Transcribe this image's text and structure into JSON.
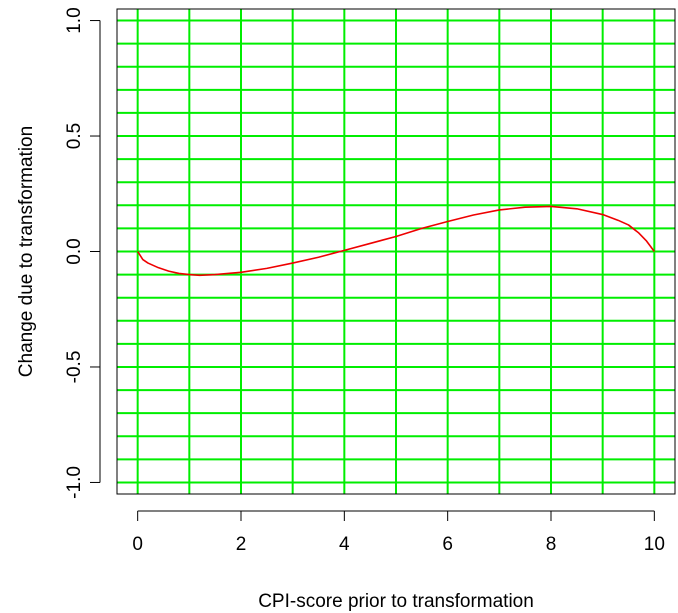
{
  "chart_data": {
    "type": "line",
    "title": "",
    "xlabel": "CPI-score prior to transformation",
    "ylabel": "Change due to transformation",
    "xlim": [
      -0.4,
      10.4
    ],
    "ylim": [
      -1.05,
      1.05
    ],
    "x_ticks": [
      0,
      2,
      4,
      6,
      8,
      10
    ],
    "x_tick_labels": [
      "0",
      "2",
      "4",
      "6",
      "8",
      "10"
    ],
    "y_ticks": [
      -1.0,
      -0.5,
      0.0,
      0.5,
      1.0
    ],
    "y_tick_labels": [
      "-1.0",
      "-0.5",
      "0.0",
      "0.5",
      "1.0"
    ],
    "grid": true,
    "grid_color": "#00ee00",
    "grid_x": [
      0,
      1,
      2,
      3,
      4,
      5,
      6,
      7,
      8,
      9,
      10
    ],
    "grid_y": [
      -1.0,
      -0.9,
      -0.8,
      -0.7,
      -0.6,
      -0.5,
      -0.4,
      -0.3,
      -0.2,
      -0.1,
      0.0,
      0.1,
      0.2,
      0.3,
      0.4,
      0.5,
      0.6,
      0.7,
      0.8,
      0.9,
      1.0
    ],
    "line_color": "#ee0000",
    "series": [
      {
        "x": [
          0.0,
          0.1,
          0.2,
          0.4,
          0.6,
          0.8,
          1.0,
          1.2,
          1.5,
          2.0,
          2.5,
          3.0,
          3.5,
          4.0,
          4.5,
          5.0,
          5.5,
          6.0,
          6.5,
          7.0,
          7.5,
          8.0,
          8.5,
          9.0,
          9.3,
          9.5,
          9.7,
          9.85,
          10.0
        ],
        "y": [
          0.0,
          -0.035,
          -0.05,
          -0.07,
          -0.085,
          -0.095,
          -0.1,
          -0.103,
          -0.1,
          -0.09,
          -0.073,
          -0.05,
          -0.025,
          0.005,
          0.035,
          0.065,
          0.1,
          0.13,
          0.158,
          0.18,
          0.192,
          0.195,
          0.185,
          0.16,
          0.135,
          0.115,
          0.08,
          0.045,
          0.0
        ]
      }
    ]
  }
}
